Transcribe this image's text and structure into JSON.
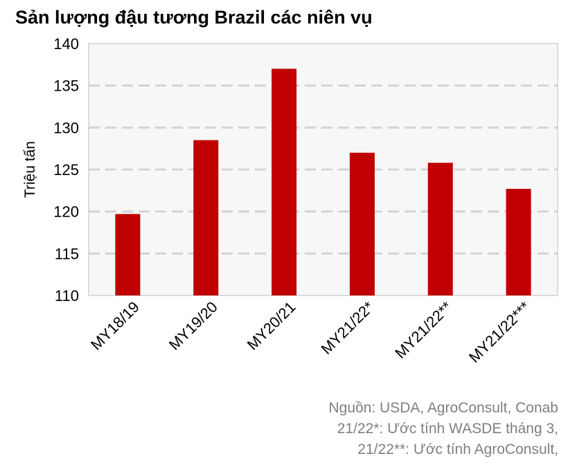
{
  "chart_data": {
    "type": "bar",
    "title": "Sản lượng đậu tương Brazil các niên vụ",
    "ylabel": "Triệu tấn",
    "xlabel": "",
    "categories": [
      "MY18/19",
      "MY19/20",
      "MY20/21",
      "MY21/22*",
      "MY21/22**",
      "MY21/22***"
    ],
    "values": [
      119.7,
      128.5,
      137.0,
      127.0,
      125.8,
      122.7
    ],
    "ylim": [
      110,
      140
    ],
    "yticks": [
      110,
      115,
      120,
      125,
      130,
      135,
      140
    ],
    "grid": true,
    "bar_color": "#c00000",
    "notes": [
      "Nguồn: USDA, AgroConsult, Conab",
      "21/22*: Ước tính WASDE tháng 3,",
      "21/22**: Ước tính AgroConsult,"
    ]
  }
}
